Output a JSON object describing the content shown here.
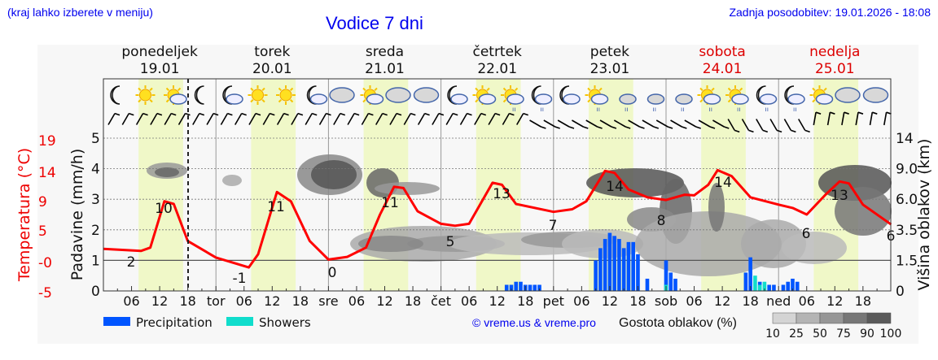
{
  "header": {
    "hint": "(kraj lahko izberete v meniju)",
    "title": "Vodice 7 dni",
    "updated": "Zadnja posodobitev: 19.01.2026 - 18:08"
  },
  "days": [
    {
      "name": "ponedeljek",
      "date": "19.01",
      "weekend": false
    },
    {
      "name": "torek",
      "date": "20.01",
      "weekend": false
    },
    {
      "name": "sreda",
      "date": "21.01",
      "weekend": false
    },
    {
      "name": "četrtek",
      "date": "22.01",
      "weekend": false
    },
    {
      "name": "petek",
      "date": "23.01",
      "weekend": false
    },
    {
      "name": "sobota",
      "date": "24.01",
      "weekend": true
    },
    {
      "name": "nedelja",
      "date": "25.01",
      "weekend": true
    }
  ],
  "axes": {
    "temperature_label": "Temperatura (°C)",
    "temperature_ticks": [
      "19",
      "14",
      "9",
      "5",
      "-0",
      "-5"
    ],
    "precip_label": "Padavine (mm/h)",
    "precip_ticks": [
      "5",
      "4",
      "3",
      "2",
      "1",
      "0"
    ],
    "cloud_label": "Višina oblakov (km)",
    "cloud_ticks": [
      "14",
      "9.0",
      "6.0",
      "3.5",
      "1.5",
      "0"
    ],
    "x_ticks": [
      "06",
      "12",
      "18",
      "tor",
      "06",
      "12",
      "18",
      "sre",
      "06",
      "12",
      "18",
      "čet",
      "06",
      "12",
      "18",
      "pet",
      "06",
      "12",
      "18",
      "sob",
      "06",
      "12",
      "18",
      "ned",
      "06",
      "12",
      "18"
    ]
  },
  "legend": {
    "precipitation": "Precipitation",
    "showers": "Showers",
    "copyright": "© vreme.us & vreme.pro",
    "cloud_density": "Gostota oblakov (%)",
    "density_scale": [
      "10",
      "25",
      "50",
      "75",
      "90",
      "100"
    ]
  },
  "colors": {
    "temperature": "#ff0000",
    "precipitation": "#0055ff",
    "showers": "#11ddcc",
    "daylight": "#f0f8c8",
    "link": "#0000ee",
    "weekend": "#dd0000"
  },
  "weather_icons": [
    "moon",
    "sun",
    "sun-cloud",
    "moon",
    "moon-cloud",
    "sun",
    "sun",
    "moon-cloud",
    "cloudy",
    "sun-cloud",
    "cloudy",
    "cloudy",
    "moon-cloud",
    "sun-cloud",
    "sun-rain",
    "moon-rain",
    "moon-cloud",
    "sun-rain",
    "cloud-rain",
    "cloud-rain",
    "cloud-rain",
    "sun-rain",
    "sun-rain",
    "moon-rain",
    "moon-rain",
    "sun-cloud",
    "cloudy",
    "cloudy"
  ],
  "chart_data": {
    "type": "line",
    "title": "Vodice 7 dni",
    "xlabel": "",
    "ylabel": "Temperatura (°C) / Padavine (mm/h)",
    "x_range": [
      "19.01 00:00",
      "25.01 24:00"
    ],
    "series": [
      {
        "name": "Temperatura (°C)",
        "axis": "left",
        "labels": [
          {
            "x": "19.01 03",
            "value": 2
          },
          {
            "x": "19.01 13",
            "value": 10
          },
          {
            "x": "20.01 03",
            "value": -1
          },
          {
            "x": "20.01 13",
            "value": 11
          },
          {
            "x": "21.01 00",
            "value": 0
          },
          {
            "x": "21.01 14",
            "value": 11
          },
          {
            "x": "22.01 00",
            "value": 5
          },
          {
            "x": "22.01 13",
            "value": 13
          },
          {
            "x": "23.01 00",
            "value": 7
          },
          {
            "x": "23.01 14",
            "value": 14
          },
          {
            "x": "24.01 00",
            "value": 8
          },
          {
            "x": "24.01 14",
            "value": 14
          },
          {
            "x": "25.01 00",
            "value": 6
          },
          {
            "x": "25.01 13",
            "value": 13
          },
          {
            "x": "25.01 24",
            "value": 6
          }
        ]
      },
      {
        "name": "Precipitation",
        "axis": "precip",
        "unit": "mm/h",
        "points": [
          {
            "x": "22.01 14",
            "value": 0.2
          },
          {
            "x": "22.01 15",
            "value": 0.2
          },
          {
            "x": "22.01 16",
            "value": 0.3
          },
          {
            "x": "22.01 17",
            "value": 0.3
          },
          {
            "x": "22.01 18",
            "value": 0.2
          },
          {
            "x": "22.01 19",
            "value": 0.2
          },
          {
            "x": "22.01 20",
            "value": 0.2
          },
          {
            "x": "22.01 21",
            "value": 0.2
          },
          {
            "x": "23.01 09",
            "value": 1.0
          },
          {
            "x": "23.01 10",
            "value": 1.4
          },
          {
            "x": "23.01 11",
            "value": 1.7
          },
          {
            "x": "23.01 12",
            "value": 1.9
          },
          {
            "x": "23.01 13",
            "value": 1.8
          },
          {
            "x": "23.01 14",
            "value": 1.7
          },
          {
            "x": "23.01 15",
            "value": 1.4
          },
          {
            "x": "23.01 16",
            "value": 1.6
          },
          {
            "x": "23.01 17",
            "value": 1.6
          },
          {
            "x": "23.01 18",
            "value": 1.2
          },
          {
            "x": "23.01 20",
            "value": 0.4
          },
          {
            "x": "24.01 00",
            "value": 1.0
          },
          {
            "x": "24.01 01",
            "value": 0.6
          },
          {
            "x": "24.01 02",
            "value": 0.4
          },
          {
            "x": "24.01 17",
            "value": 0.6
          },
          {
            "x": "24.01 18",
            "value": 1.1
          },
          {
            "x": "24.01 20",
            "value": 0.3
          },
          {
            "x": "24.01 22",
            "value": 0.2
          },
          {
            "x": "24.01 23",
            "value": 0.2
          },
          {
            "x": "25.01 01",
            "value": 0.2
          },
          {
            "x": "25.01 02",
            "value": 0.3
          },
          {
            "x": "25.01 03",
            "value": 0.4
          },
          {
            "x": "25.01 04",
            "value": 0.3
          }
        ]
      },
      {
        "name": "Showers",
        "axis": "precip",
        "unit": "mm/h",
        "points": [
          {
            "x": "24.01 00",
            "value": 0.2
          },
          {
            "x": "24.01 19",
            "value": 0.5
          },
          {
            "x": "24.01 20",
            "value": 0.2
          },
          {
            "x": "24.01 21",
            "value": 0.3
          }
        ]
      }
    ],
    "axes_ranges": {
      "temperature": [
        -5,
        19
      ],
      "precipitation": [
        0,
        5
      ],
      "cloud_height_km": [
        0,
        14
      ]
    },
    "grid": true,
    "legend_position": "bottom"
  }
}
